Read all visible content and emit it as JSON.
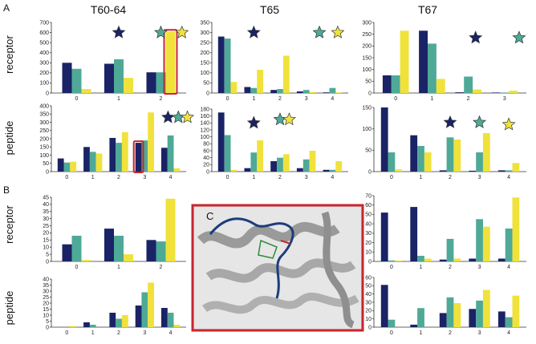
{
  "figure": {
    "column_headers": [
      "T60-64",
      "T65",
      "T67"
    ],
    "panel_letters": [
      "A",
      "B"
    ],
    "inset_letter": "C",
    "row_labels": {
      "receptor": "receptor",
      "peptide": "peptide"
    }
  },
  "colors": {
    "navy": "#1a2366",
    "teal": "#4fa997",
    "yellow": "#f0e23b",
    "red_box": "#c9252c",
    "star_outline": "#333333"
  },
  "chart_data": [
    {
      "id": "A-receptor-T60-64",
      "type": "bar",
      "categories": [
        "0",
        "1",
        "2"
      ],
      "ylim": [
        0,
        700
      ],
      "yticks": [
        0,
        100,
        200,
        300,
        400,
        500,
        600,
        700
      ],
      "series": [
        {
          "color": "navy",
          "values": [
            300,
            290,
            205
          ]
        },
        {
          "color": "teal",
          "values": [
            240,
            335,
            205
          ]
        },
        {
          "color": "yellow",
          "values": [
            40,
            150,
            610
          ]
        }
      ],
      "stars": [
        {
          "color": "navy",
          "category": 1,
          "y": 600
        },
        {
          "color": "teal",
          "category": 2,
          "y": 600
        },
        {
          "color": "yellow",
          "category": 2.5,
          "y": 600
        }
      ],
      "highlight": {
        "series": 2,
        "category": 2
      }
    },
    {
      "id": "A-receptor-T65",
      "type": "bar",
      "categories": [
        "0",
        "1",
        "2",
        "3",
        "4"
      ],
      "ylim": [
        0,
        350
      ],
      "yticks": [
        0,
        50,
        100,
        150,
        200,
        250,
        300,
        350
      ],
      "series": [
        {
          "color": "navy",
          "values": [
            280,
            30,
            15,
            8,
            3
          ]
        },
        {
          "color": "teal",
          "values": [
            270,
            25,
            20,
            15,
            25
          ]
        },
        {
          "color": "yellow",
          "values": [
            55,
            115,
            185,
            5,
            3
          ]
        }
      ],
      "stars": [
        {
          "color": "navy",
          "category": 1,
          "y": 300
        },
        {
          "color": "teal",
          "category": 3.5,
          "y": 300
        },
        {
          "color": "yellow",
          "category": 4.2,
          "y": 300
        }
      ]
    },
    {
      "id": "A-receptor-T67",
      "type": "bar",
      "categories": [
        "0",
        "1",
        "2",
        "3"
      ],
      "ylim": [
        0,
        300
      ],
      "yticks": [
        0,
        50,
        100,
        150,
        200,
        250,
        300
      ],
      "series": [
        {
          "color": "navy",
          "values": [
            75,
            265,
            3,
            2
          ]
        },
        {
          "color": "teal",
          "values": [
            75,
            210,
            70,
            2
          ]
        },
        {
          "color": "yellow",
          "values": [
            265,
            60,
            15,
            10
          ]
        }
      ],
      "stars": [
        {
          "color": "navy",
          "category": 2.2,
          "y": 235
        },
        {
          "color": "teal",
          "category": 3.4,
          "y": 235
        },
        {
          "color": "yellow",
          "category": 4.5,
          "y": 235
        }
      ]
    },
    {
      "id": "A-peptide-T60-64",
      "type": "bar",
      "categories": [
        "0",
        "1",
        "2",
        "3",
        "4"
      ],
      "ylim": [
        0,
        400
      ],
      "yticks": [
        0,
        50,
        100,
        150,
        200,
        250,
        300,
        350,
        400
      ],
      "series": [
        {
          "color": "navy",
          "values": [
            80,
            150,
            205,
            175,
            145
          ]
        },
        {
          "color": "teal",
          "values": [
            55,
            120,
            175,
            190,
            220
          ]
        },
        {
          "color": "yellow",
          "values": [
            60,
            110,
            240,
            360,
            20
          ]
        }
      ],
      "stars": [
        {
          "color": "navy",
          "category": 3.9,
          "y": 330
        },
        {
          "color": "teal",
          "category": 4.3,
          "y": 330
        },
        {
          "color": "yellow",
          "category": 4.65,
          "y": 330
        }
      ],
      "highlight": {
        "series": 0,
        "category": 3
      }
    },
    {
      "id": "A-peptide-T65",
      "type": "bar",
      "categories": [
        "0",
        "1",
        "2",
        "3",
        "4"
      ],
      "ylim": [
        0,
        180
      ],
      "yticks": [
        0,
        20,
        40,
        60,
        80,
        100,
        120,
        140,
        160,
        180
      ],
      "series": [
        {
          "color": "navy",
          "values": [
            170,
            10,
            30,
            10,
            5
          ]
        },
        {
          "color": "teal",
          "values": [
            105,
            55,
            40,
            35,
            5
          ]
        },
        {
          "color": "yellow",
          "values": [
            5,
            90,
            50,
            60,
            30
          ]
        }
      ],
      "stars": [
        {
          "color": "navy",
          "category": 1,
          "y": 140
        },
        {
          "color": "teal",
          "category": 2,
          "y": 150
        },
        {
          "color": "yellow",
          "category": 2.35,
          "y": 150
        }
      ]
    },
    {
      "id": "A-peptide-T67",
      "type": "bar",
      "categories": [
        "0",
        "1",
        "2",
        "3",
        "4"
      ],
      "ylim": [
        0,
        150
      ],
      "yticks": [
        0,
        50,
        100,
        150
      ],
      "series": [
        {
          "color": "navy",
          "values": [
            150,
            85,
            3,
            2,
            3
          ]
        },
        {
          "color": "teal",
          "values": [
            45,
            60,
            80,
            45,
            3
          ]
        },
        {
          "color": "yellow",
          "values": [
            5,
            45,
            75,
            90,
            20
          ]
        }
      ],
      "stars": [
        {
          "color": "navy",
          "category": 2,
          "y": 115
        },
        {
          "color": "teal",
          "category": 3,
          "y": 115
        },
        {
          "color": "yellow",
          "category": 4,
          "y": 110
        }
      ]
    },
    {
      "id": "B-receptor-T60-64",
      "type": "bar",
      "categories": [
        "0",
        "1",
        "2"
      ],
      "ylim": [
        0,
        45
      ],
      "yticks": [
        0,
        5,
        10,
        15,
        20,
        25,
        30,
        35,
        40,
        45
      ],
      "series": [
        {
          "color": "navy",
          "values": [
            12,
            23,
            15
          ]
        },
        {
          "color": "teal",
          "values": [
            18,
            18,
            14
          ]
        },
        {
          "color": "yellow",
          "values": [
            1,
            5,
            44
          ]
        }
      ]
    },
    {
      "id": "B-receptor-T67",
      "type": "bar",
      "categories": [
        "0",
        "1",
        "2",
        "3",
        "4"
      ],
      "ylim": [
        0,
        70
      ],
      "yticks": [
        0,
        10,
        20,
        30,
        40,
        50,
        60,
        70
      ],
      "series": [
        {
          "color": "navy",
          "values": [
            52,
            58,
            2,
            3,
            3
          ]
        },
        {
          "color": "teal",
          "values": [
            1,
            6,
            24,
            45,
            35
          ]
        },
        {
          "color": "yellow",
          "values": [
            1,
            3,
            3,
            37,
            68
          ]
        }
      ]
    },
    {
      "id": "B-peptide-T60-64",
      "type": "bar",
      "categories": [
        "0",
        "1",
        "2",
        "3",
        "4"
      ],
      "ylim": [
        0,
        40
      ],
      "yticks": [
        0,
        5,
        10,
        15,
        20,
        25,
        30,
        35,
        40
      ],
      "series": [
        {
          "color": "navy",
          "values": [
            0,
            4,
            12,
            18,
            16
          ]
        },
        {
          "color": "teal",
          "values": [
            0,
            2,
            7,
            29,
            12
          ]
        },
        {
          "color": "yellow",
          "values": [
            1,
            0,
            10,
            37,
            2
          ]
        }
      ]
    },
    {
      "id": "B-peptide-T67",
      "type": "bar",
      "categories": [
        "0",
        "1",
        "2",
        "3",
        "4"
      ],
      "ylim": [
        0,
        60
      ],
      "yticks": [
        0,
        10,
        20,
        30,
        40,
        50,
        60
      ],
      "series": [
        {
          "color": "navy",
          "values": [
            51,
            3,
            17,
            22,
            19
          ]
        },
        {
          "color": "teal",
          "values": [
            9,
            23,
            36,
            32,
            12
          ]
        },
        {
          "color": "yellow",
          "values": [
            0,
            0,
            29,
            45,
            38
          ]
        }
      ]
    }
  ]
}
